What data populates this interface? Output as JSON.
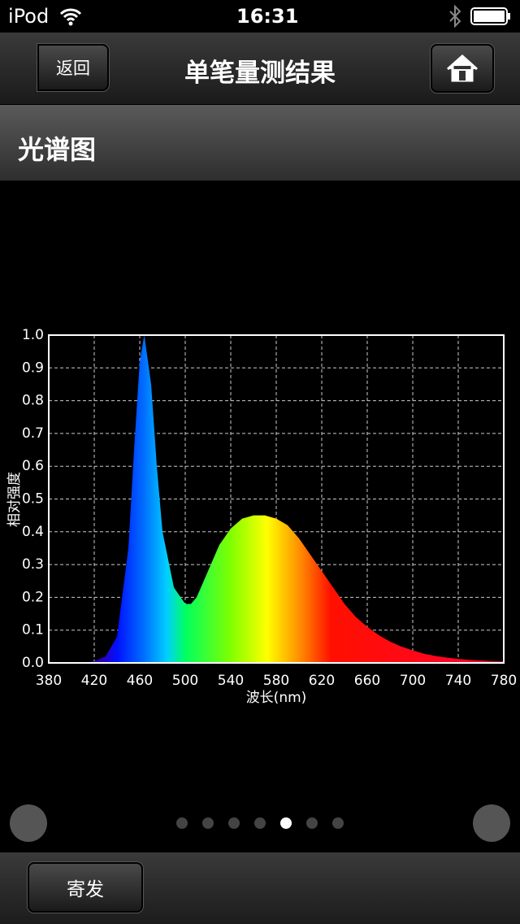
{
  "status_bar": {
    "device": "iPod",
    "time": "16:31"
  },
  "nav": {
    "back": "返回",
    "title": "单笔量测结果"
  },
  "section": {
    "title": "光谱图"
  },
  "chart_data": {
    "type": "area",
    "xlabel": "波长(nm)",
    "ylabel": "相对强度",
    "x": [
      380,
      390,
      400,
      410,
      420,
      430,
      440,
      450,
      455,
      460,
      464,
      470,
      475,
      480,
      490,
      500,
      505,
      510,
      520,
      530,
      540,
      550,
      560,
      570,
      580,
      590,
      600,
      610,
      620,
      630,
      640,
      650,
      660,
      670,
      680,
      690,
      700,
      710,
      720,
      730,
      740,
      750,
      760,
      770,
      780
    ],
    "values": [
      0,
      0,
      0,
      0,
      0.005,
      0.02,
      0.08,
      0.35,
      0.65,
      0.92,
      1.0,
      0.85,
      0.6,
      0.4,
      0.23,
      0.18,
      0.18,
      0.2,
      0.28,
      0.36,
      0.41,
      0.44,
      0.45,
      0.45,
      0.44,
      0.42,
      0.38,
      0.33,
      0.28,
      0.23,
      0.18,
      0.14,
      0.11,
      0.085,
      0.065,
      0.05,
      0.038,
      0.028,
      0.021,
      0.016,
      0.012,
      0.009,
      0.007,
      0.005,
      0.004
    ],
    "xlim": [
      380,
      780
    ],
    "xticks": [
      380,
      420,
      460,
      500,
      540,
      580,
      620,
      660,
      700,
      740,
      780
    ],
    "ylim": [
      0,
      1
    ],
    "yticks": [
      {
        "value": 0,
        "label": "0.0"
      },
      0.1,
      0.2,
      0.3,
      0.4,
      0.5,
      0.6,
      0.7,
      0.8,
      0.9,
      {
        "value": 1,
        "label": "1.0"
      }
    ],
    "grid": true
  },
  "footer": {
    "button": "寄发"
  }
}
